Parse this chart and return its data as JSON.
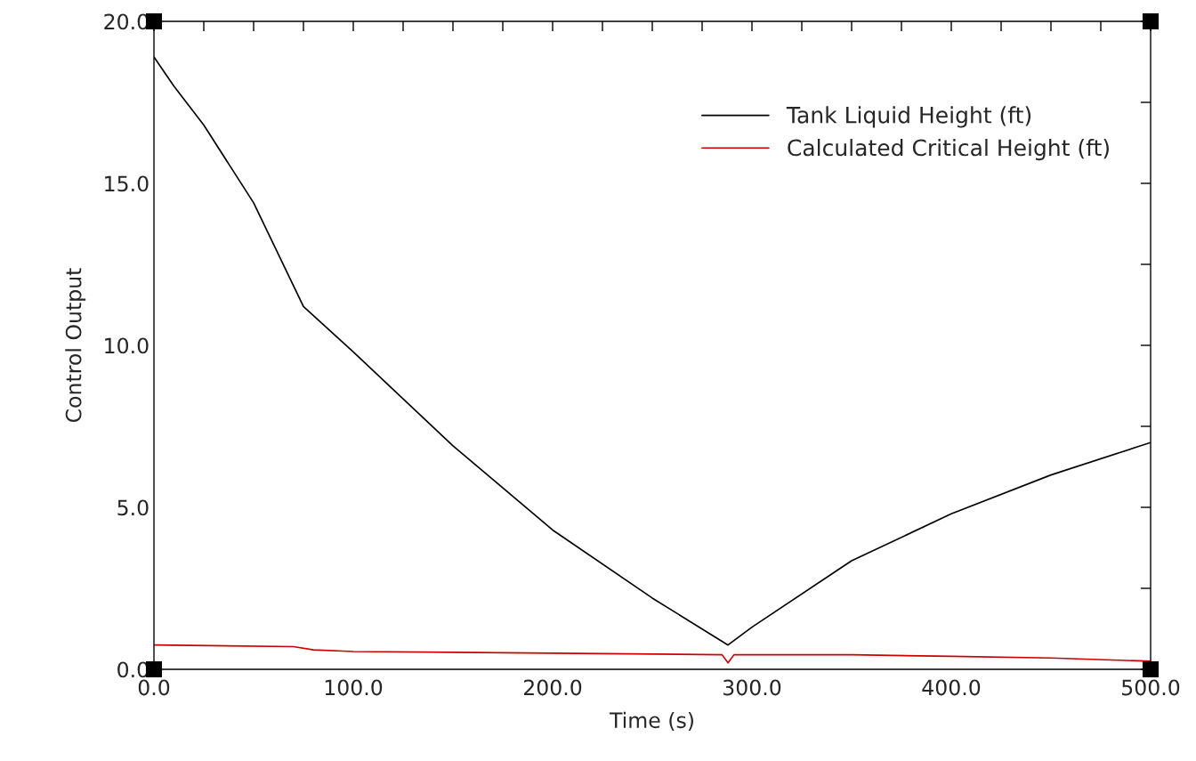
{
  "chart_data": {
    "type": "line",
    "xlabel": "Time (s)",
    "ylabel": "Control Output",
    "series": [
      {
        "name": "Tank Liquid Height (ft)",
        "color": "#000000",
        "x": [
          0,
          10,
          25,
          50,
          75,
          100,
          150,
          200,
          250,
          288,
          300,
          350,
          400,
          450,
          500
        ],
        "values": [
          18.9,
          18.0,
          16.8,
          14.4,
          11.2,
          9.8,
          6.9,
          4.3,
          2.2,
          0.75,
          1.3,
          3.35,
          4.8,
          6.0,
          7.0
        ]
      },
      {
        "name": "Calculated Critical Height (ft)",
        "color": "#cc0000",
        "x": [
          0,
          70,
          80,
          100,
          200,
          285,
          288,
          291,
          350,
          400,
          450,
          500
        ],
        "values": [
          0.75,
          0.7,
          0.6,
          0.55,
          0.5,
          0.45,
          0.2,
          0.45,
          0.45,
          0.4,
          0.35,
          0.25
        ]
      }
    ],
    "xlim": [
      0,
      500
    ],
    "ylim": [
      0,
      20
    ],
    "xticks": [
      {
        "value": 0,
        "label": "0.0"
      },
      {
        "value": 25,
        "label": null
      },
      {
        "value": 50,
        "label": null
      },
      {
        "value": 75,
        "label": null
      },
      {
        "value": 100,
        "label": "100.0"
      },
      {
        "value": 125,
        "label": null
      },
      {
        "value": 150,
        "label": null
      },
      {
        "value": 175,
        "label": null
      },
      {
        "value": 200,
        "label": "200.0"
      },
      {
        "value": 225,
        "label": null
      },
      {
        "value": 250,
        "label": null
      },
      {
        "value": 275,
        "label": null
      },
      {
        "value": 300,
        "label": "300.0"
      },
      {
        "value": 325,
        "label": null
      },
      {
        "value": 350,
        "label": null
      },
      {
        "value": 375,
        "label": null
      },
      {
        "value": 400,
        "label": "400.0"
      },
      {
        "value": 425,
        "label": null
      },
      {
        "value": 450,
        "label": null
      },
      {
        "value": 475,
        "label": null
      },
      {
        "value": 500,
        "label": "500.0"
      }
    ],
    "yticks": [
      {
        "value": 0,
        "label": "0.0"
      },
      {
        "value": 2.5,
        "label": null
      },
      {
        "value": 5,
        "label": "5.0"
      },
      {
        "value": 7.5,
        "label": null
      },
      {
        "value": 10,
        "label": "10.0"
      },
      {
        "value": 12.5,
        "label": null
      },
      {
        "value": 15,
        "label": "15.0"
      },
      {
        "value": 17.5,
        "label": null
      },
      {
        "value": 20,
        "label": "20.0"
      }
    ],
    "grid": false,
    "legend": "top right",
    "marker": "none",
    "line_style": "solid"
  }
}
